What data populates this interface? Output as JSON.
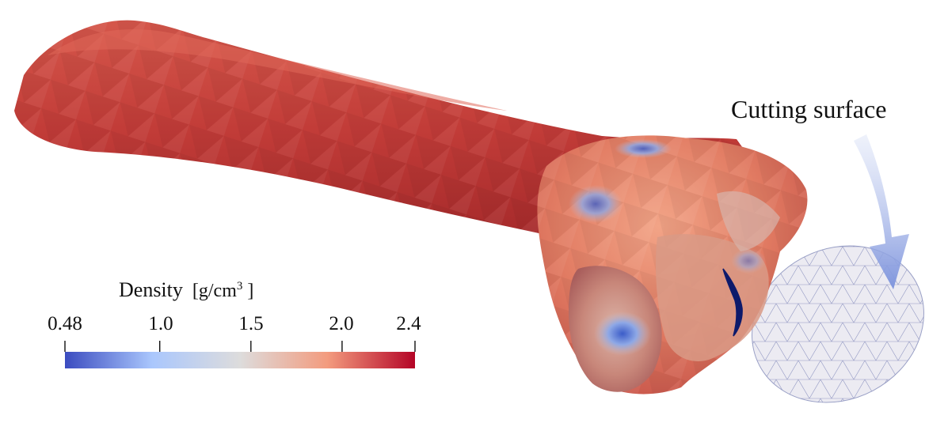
{
  "colorbar": {
    "title": "Density",
    "unit_prefix": "[g/cm",
    "unit_exp": "3",
    "unit_suffix": " ]",
    "ticks": [
      "0.48",
      "1.0",
      "1.5",
      "2.0",
      "2.4"
    ],
    "tick_values": [
      0.48,
      1.0,
      1.5,
      2.0,
      2.4
    ],
    "range": [
      0.48,
      2.4
    ],
    "colors": [
      "#3b4cc0",
      "#aac7fd",
      "#dddcdc",
      "#f39b7e",
      "#b40426"
    ]
  },
  "cutting_surface": {
    "label": "Cutting surface"
  },
  "colors": {
    "bone_main": "#c8403a",
    "bone_dark": "#a72a2a",
    "bone_light": "#e07a62",
    "low_density": "#4f6fd0",
    "mesh_line": "#7d84b8",
    "arrow": "#8a9fe0",
    "crack": "#0d1a6b"
  }
}
